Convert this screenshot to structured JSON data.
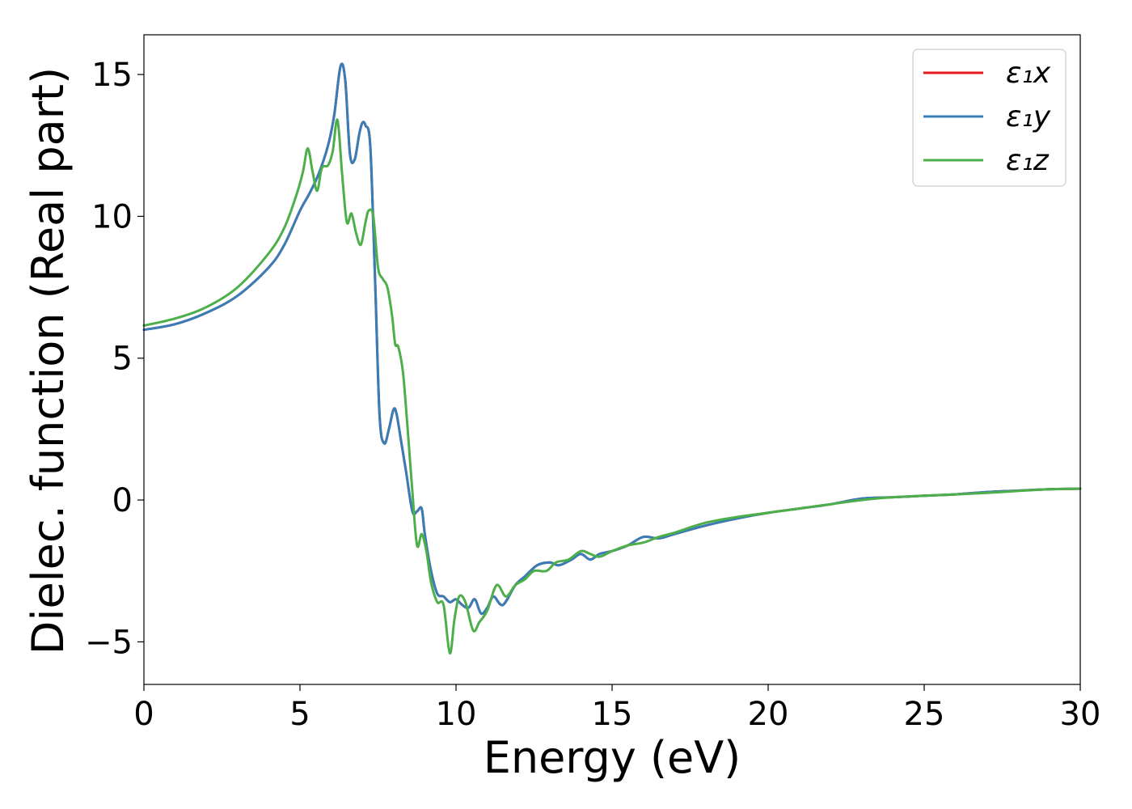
{
  "chart_data": {
    "type": "line",
    "xlabel": "Energy (eV)",
    "ylabel": "Dielec. function (Real part)",
    "xlim": [
      0,
      30
    ],
    "ylim": [
      -6.5,
      16.4
    ],
    "xticks": [
      0,
      5,
      10,
      15,
      20,
      25,
      30
    ],
    "xtick_labels": [
      "0",
      "5",
      "10",
      "15",
      "20",
      "25",
      "30"
    ],
    "yticks": [
      -5,
      0,
      5,
      10,
      15
    ],
    "ytick_labels": [
      "−5",
      "0",
      "5",
      "10",
      "15"
    ],
    "grid": false,
    "legend_position": "top-right",
    "series": [
      {
        "name": "ε₁x",
        "color": "#e41a1c",
        "x": [
          0,
          1,
          2,
          3,
          4,
          4.5,
          5,
          5.3,
          5.6,
          5.9,
          6.1,
          6.3,
          6.45,
          6.6,
          6.75,
          6.9,
          7.0,
          7.1,
          7.25,
          7.4,
          7.55,
          7.7,
          7.85,
          8.0,
          8.1,
          8.25,
          8.4,
          8.6,
          8.75,
          8.9,
          9.0,
          9.2,
          9.4,
          9.6,
          9.8,
          10.0,
          10.2,
          10.4,
          10.6,
          10.8,
          11.0,
          11.2,
          11.5,
          11.9,
          12.2,
          12.6,
          13.0,
          13.3,
          13.7,
          14.0,
          14.3,
          14.6,
          15.0,
          15.5,
          16.0,
          16.5,
          17.0,
          18.0,
          19.0,
          20.0,
          21.0,
          22.0,
          23.0,
          24.0,
          25.0,
          26.0,
          27.0,
          28.0,
          29.0,
          30.0
        ],
        "y": [
          6.0,
          6.2,
          6.6,
          7.2,
          8.2,
          9.0,
          10.2,
          10.8,
          11.5,
          12.5,
          13.6,
          15.3,
          14.8,
          12.2,
          12.0,
          12.9,
          13.3,
          13.2,
          12.5,
          8.0,
          3.0,
          2.0,
          2.5,
          3.2,
          3.0,
          2.0,
          1.0,
          -0.4,
          -0.4,
          -0.3,
          -1.2,
          -2.5,
          -3.3,
          -3.4,
          -3.6,
          -3.5,
          -3.7,
          -3.8,
          -3.5,
          -4.0,
          -3.8,
          -3.4,
          -3.7,
          -3.0,
          -2.7,
          -2.3,
          -2.2,
          -2.3,
          -2.1,
          -1.9,
          -2.1,
          -1.9,
          -1.8,
          -1.6,
          -1.3,
          -1.35,
          -1.2,
          -0.9,
          -0.65,
          -0.45,
          -0.3,
          -0.15,
          0.05,
          0.1,
          0.15,
          0.2,
          0.28,
          0.33,
          0.38,
          0.4
        ]
      },
      {
        "name": "ε₁y",
        "color": "#377eb8",
        "x": [
          0,
          1,
          2,
          3,
          4,
          4.5,
          5,
          5.3,
          5.6,
          5.9,
          6.1,
          6.3,
          6.45,
          6.6,
          6.75,
          6.9,
          7.0,
          7.1,
          7.25,
          7.4,
          7.55,
          7.7,
          7.85,
          8.0,
          8.1,
          8.25,
          8.4,
          8.6,
          8.75,
          8.9,
          9.0,
          9.2,
          9.4,
          9.6,
          9.8,
          10.0,
          10.2,
          10.4,
          10.6,
          10.8,
          11.0,
          11.2,
          11.5,
          11.9,
          12.2,
          12.6,
          13.0,
          13.3,
          13.7,
          14.0,
          14.3,
          14.6,
          15.0,
          15.5,
          16.0,
          16.5,
          17.0,
          18.0,
          19.0,
          20.0,
          21.0,
          22.0,
          23.0,
          24.0,
          25.0,
          26.0,
          27.0,
          28.0,
          29.0,
          30.0
        ],
        "y": [
          6.0,
          6.2,
          6.6,
          7.2,
          8.2,
          9.0,
          10.2,
          10.8,
          11.5,
          12.5,
          13.6,
          15.3,
          14.8,
          12.2,
          12.0,
          12.9,
          13.3,
          13.2,
          12.5,
          8.0,
          3.0,
          2.0,
          2.5,
          3.2,
          3.0,
          2.0,
          1.0,
          -0.4,
          -0.4,
          -0.3,
          -1.2,
          -2.5,
          -3.3,
          -3.4,
          -3.6,
          -3.5,
          -3.7,
          -3.8,
          -3.5,
          -4.0,
          -3.8,
          -3.4,
          -3.7,
          -3.0,
          -2.7,
          -2.3,
          -2.2,
          -2.3,
          -2.1,
          -1.9,
          -2.1,
          -1.9,
          -1.8,
          -1.6,
          -1.3,
          -1.35,
          -1.2,
          -0.9,
          -0.65,
          -0.45,
          -0.3,
          -0.15,
          0.05,
          0.1,
          0.15,
          0.2,
          0.28,
          0.33,
          0.38,
          0.4
        ]
      },
      {
        "name": "ε₁z",
        "color": "#4daf4a",
        "x": [
          0,
          1,
          2,
          3,
          4,
          4.5,
          4.9,
          5.1,
          5.25,
          5.4,
          5.55,
          5.7,
          5.9,
          6.05,
          6.2,
          6.35,
          6.5,
          6.65,
          6.8,
          6.95,
          7.1,
          7.2,
          7.35,
          7.5,
          7.65,
          7.8,
          7.95,
          8.05,
          8.15,
          8.3,
          8.45,
          8.6,
          8.75,
          8.9,
          9.05,
          9.2,
          9.4,
          9.6,
          9.8,
          9.95,
          10.1,
          10.3,
          10.55,
          10.75,
          11.0,
          11.3,
          11.6,
          11.9,
          12.2,
          12.5,
          12.9,
          13.2,
          13.6,
          14.0,
          14.3,
          14.6,
          15.0,
          15.5,
          16.0,
          16.5,
          17.0,
          18.0,
          19.0,
          20.0,
          21.0,
          22.0,
          23.0,
          24.0,
          25.0,
          26.0,
          27.0,
          28.0,
          29.0,
          30.0
        ],
        "y": [
          6.15,
          6.4,
          6.8,
          7.5,
          8.7,
          9.6,
          10.8,
          11.6,
          12.4,
          11.6,
          10.9,
          11.7,
          11.8,
          12.3,
          13.4,
          11.5,
          9.8,
          10.1,
          9.4,
          9.0,
          9.8,
          10.2,
          10.0,
          8.2,
          7.8,
          7.5,
          6.5,
          5.5,
          5.4,
          4.5,
          2.5,
          0.3,
          -1.6,
          -1.2,
          -1.8,
          -2.9,
          -3.6,
          -3.7,
          -5.4,
          -4.2,
          -3.4,
          -3.6,
          -4.6,
          -4.3,
          -3.9,
          -3.0,
          -3.4,
          -3.0,
          -2.8,
          -2.5,
          -2.5,
          -2.2,
          -2.1,
          -1.8,
          -1.9,
          -2.0,
          -1.8,
          -1.6,
          -1.5,
          -1.3,
          -1.15,
          -0.8,
          -0.6,
          -0.45,
          -0.3,
          -0.15,
          0.0,
          0.1,
          0.15,
          0.2,
          0.25,
          0.32,
          0.38,
          0.4
        ]
      }
    ]
  }
}
